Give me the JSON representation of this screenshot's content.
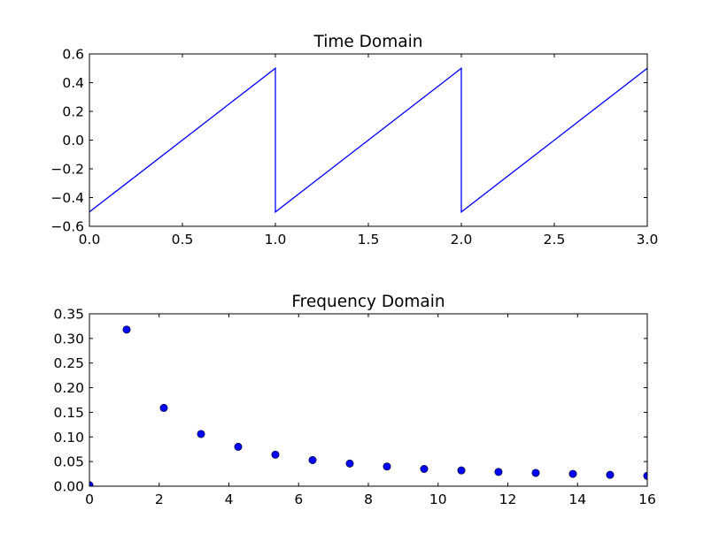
{
  "chart_data": [
    {
      "type": "line",
      "title": "Time Domain",
      "xlabel": "",
      "ylabel": "",
      "xlim": [
        0.0,
        3.0
      ],
      "ylim": [
        -0.6,
        0.6
      ],
      "x_ticks": [
        "0.0",
        "0.5",
        "1.0",
        "1.5",
        "2.0",
        "2.5",
        "3.0"
      ],
      "y_ticks": [
        "−0.6",
        "−0.4",
        "−0.2",
        "0.0",
        "0.2",
        "0.4",
        "0.6"
      ],
      "grid": false,
      "series": [
        {
          "color": "#0000ff",
          "x": [
            0.0,
            1.0,
            1.0,
            2.0,
            2.0,
            3.0
          ],
          "y": [
            -0.5,
            0.5,
            -0.5,
            0.5,
            -0.5,
            0.5
          ]
        }
      ]
    },
    {
      "type": "scatter",
      "title": "Frequency Domain",
      "xlabel": "",
      "ylabel": "",
      "xlim": [
        0,
        16
      ],
      "ylim": [
        0.0,
        0.35
      ],
      "x_ticks": [
        "0",
        "2",
        "4",
        "6",
        "8",
        "10",
        "12",
        "14",
        "16"
      ],
      "y_ticks": [
        "0.00",
        "0.05",
        "0.10",
        "0.15",
        "0.20",
        "0.25",
        "0.30",
        "0.35"
      ],
      "grid": false,
      "series": [
        {
          "color": "#0000ff",
          "x": [
            0.0,
            1.067,
            2.133,
            3.2,
            4.267,
            5.333,
            6.4,
            7.467,
            8.533,
            9.6,
            10.667,
            11.733,
            12.8,
            13.867,
            14.933,
            16.0
          ],
          "y": [
            0.002,
            0.318,
            0.159,
            0.106,
            0.08,
            0.064,
            0.053,
            0.046,
            0.04,
            0.035,
            0.032,
            0.029,
            0.027,
            0.025,
            0.023,
            0.021
          ]
        }
      ]
    }
  ]
}
